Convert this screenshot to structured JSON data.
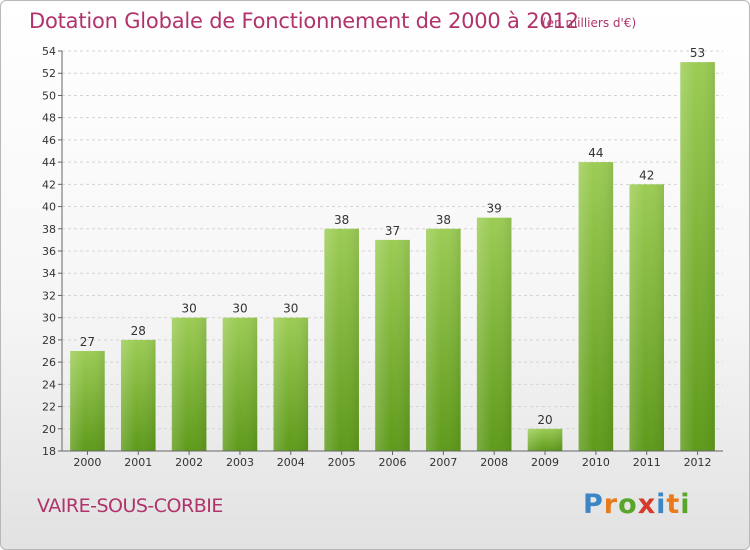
{
  "chart_data": {
    "type": "bar",
    "title": "Dotation Globale de Fonctionnement de 2000 à 2012",
    "subtitle": "(en milliers d'€)",
    "categories": [
      "2000",
      "2001",
      "2002",
      "2003",
      "2004",
      "2005",
      "2006",
      "2007",
      "2008",
      "2009",
      "2010",
      "2011",
      "2012"
    ],
    "values": [
      27,
      28,
      30,
      30,
      30,
      38,
      37,
      38,
      39,
      20,
      44,
      42,
      53
    ],
    "ylim": [
      18,
      54
    ],
    "yticks": [
      18,
      20,
      22,
      24,
      26,
      28,
      30,
      32,
      34,
      36,
      38,
      40,
      42,
      44,
      46,
      48,
      50,
      52,
      54
    ],
    "grid": true,
    "colors": {
      "bar_top": "#9ccc55",
      "bar_bottom": "#5e9a1a"
    }
  },
  "commune": "VAIRE-SOUS-CORBIE",
  "logo": {
    "letters": [
      "P",
      "r",
      "o",
      "x",
      "i",
      "t",
      "i"
    ],
    "colors": [
      "#3c86c6",
      "#e97a1b",
      "#5aa52b",
      "#d63a2c",
      "#3c86c6",
      "#e97a1b",
      "#5aa52b"
    ]
  }
}
